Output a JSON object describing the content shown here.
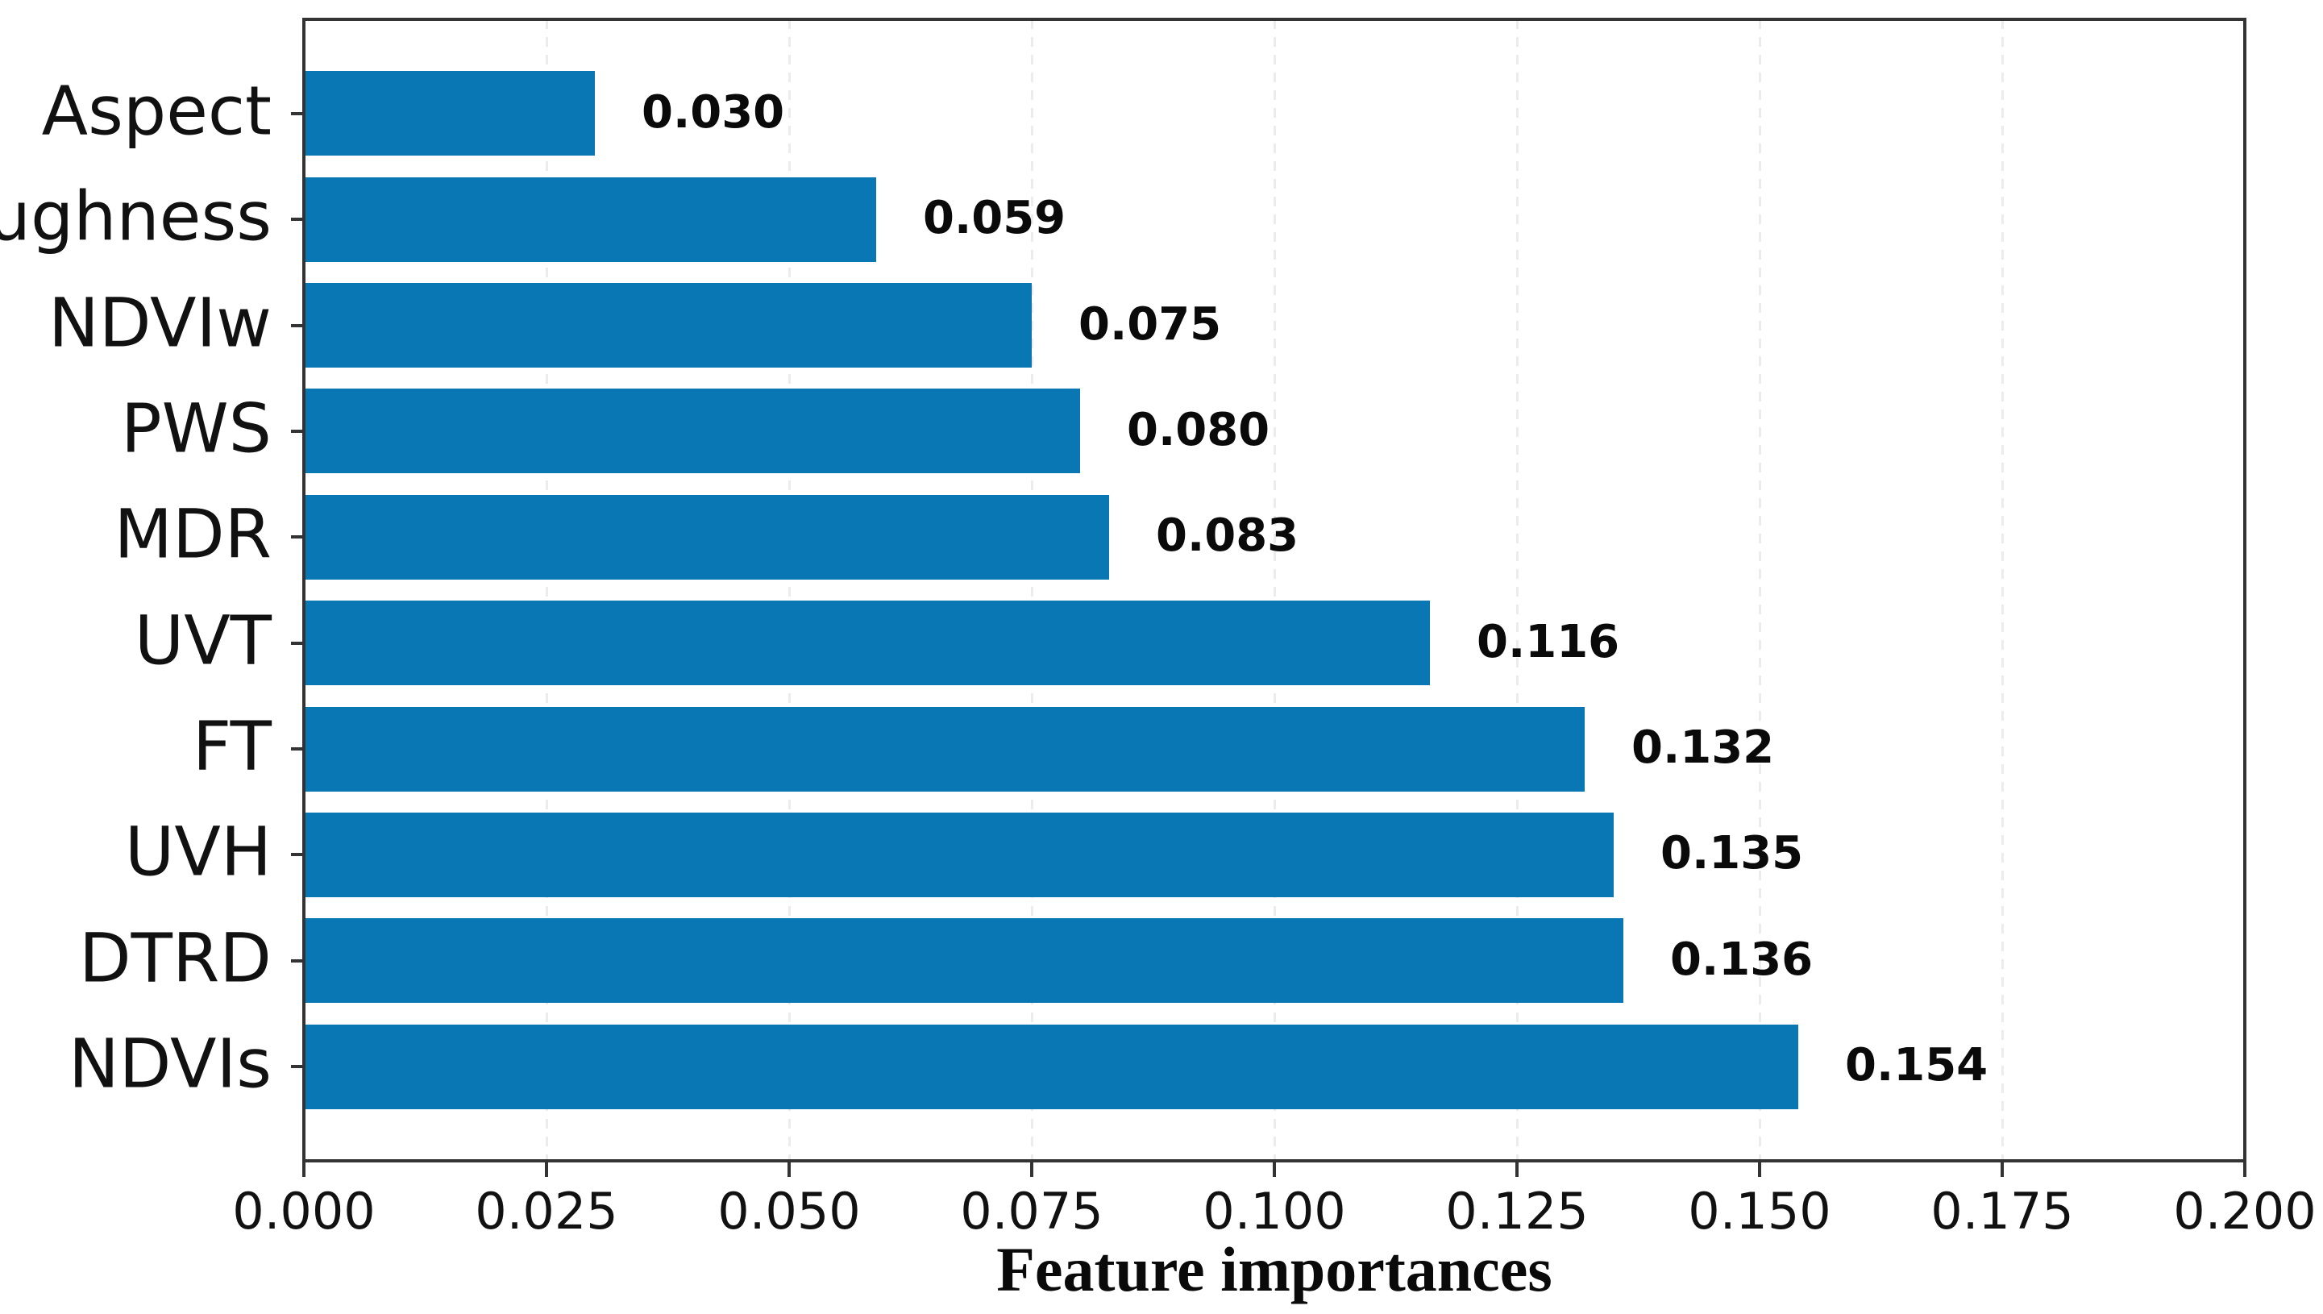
{
  "figure": {
    "background": "#ffffff"
  },
  "chart_data": {
    "type": "bar",
    "orientation": "horizontal",
    "title": "",
    "xlabel": "Feature importances",
    "ylabel": "",
    "categories": [
      "Aspect",
      "Roughness",
      "NDVIw",
      "PWS",
      "MDR",
      "UVT",
      "FT",
      "UVH",
      "DTRD",
      "NDVIs"
    ],
    "values": [
      0.03,
      0.059,
      0.075,
      0.08,
      0.083,
      0.116,
      0.132,
      0.135,
      0.136,
      0.154
    ],
    "value_labels": [
      "0.030",
      "0.059",
      "0.075",
      "0.080",
      "0.083",
      "0.116",
      "0.132",
      "0.135",
      "0.136",
      "0.154"
    ],
    "xlim": [
      0.0,
      0.2
    ],
    "xticks": [
      0.0,
      0.025,
      0.05,
      0.075,
      0.1,
      0.125,
      0.15,
      0.175,
      0.2
    ],
    "xtick_labels": [
      "0.000",
      "0.025",
      "0.050",
      "0.075",
      "0.100",
      "0.125",
      "0.150",
      "0.175",
      "0.200"
    ],
    "grid": "vertical-dashed",
    "legend": null,
    "colors": {
      "bar": "#0877b4",
      "spine": "#333333",
      "grid_on_white": "#c9c9c9",
      "grid_on_bar": "rgba(225,225,225,0.65)",
      "text": "#111111"
    }
  }
}
